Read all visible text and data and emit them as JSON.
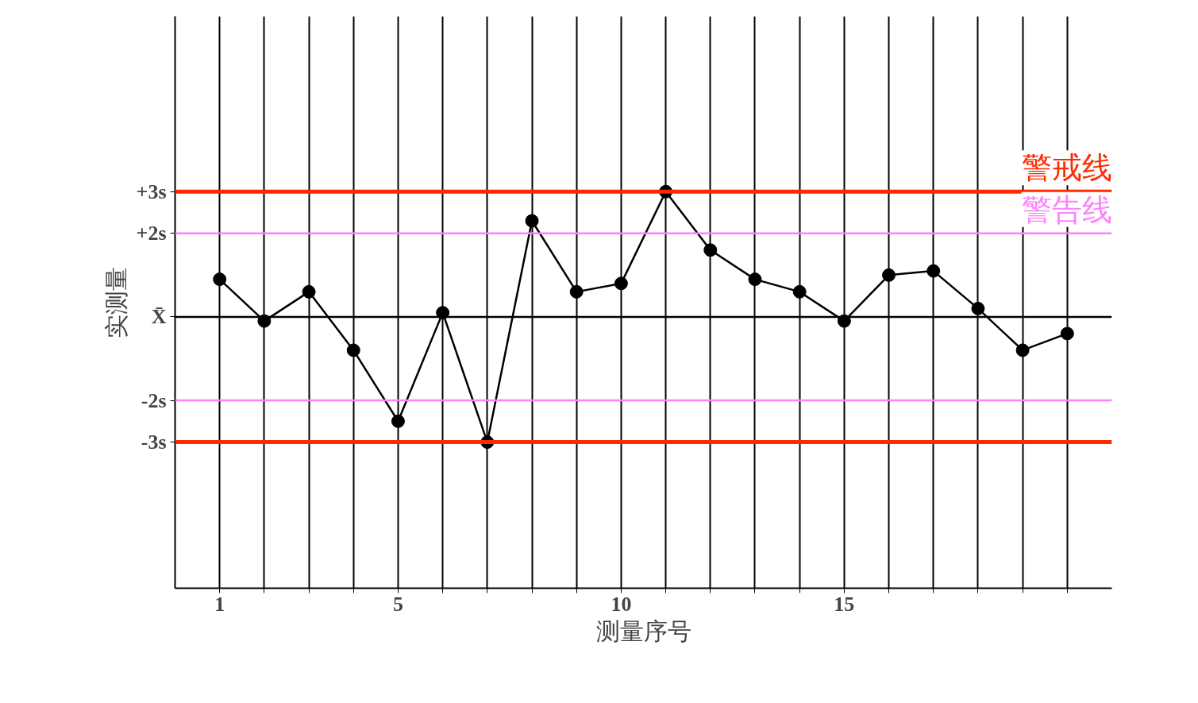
{
  "chart_data": {
    "type": "line",
    "xlabel": "测量序号",
    "ylabel": "实测量",
    "x": [
      1,
      2,
      3,
      4,
      5,
      6,
      7,
      8,
      9,
      10,
      11,
      12,
      13,
      14,
      15,
      16,
      17,
      18,
      19,
      20
    ],
    "series": [
      {
        "color": "#000000",
        "values": [
          0.9,
          -0.1,
          0.6,
          -0.8,
          -2.5,
          0.1,
          -3.0,
          2.3,
          0.6,
          0.8,
          3.0,
          1.6,
          0.9,
          0.6,
          -0.1,
          1.0,
          1.1,
          0.2,
          -0.8,
          -0.4
        ]
      }
    ],
    "marker": "circle",
    "line_style": "solid",
    "grid": "x",
    "xlim": [
      0,
      21
    ],
    "ylim": [
      -6.5,
      7.2
    ],
    "xticks": [
      1,
      {
        "value": 2,
        "label": null
      },
      {
        "value": 3,
        "label": null
      },
      {
        "value": 4,
        "label": null
      },
      5,
      {
        "value": 6,
        "label": null
      },
      {
        "value": 7,
        "label": null
      },
      {
        "value": 8,
        "label": null
      },
      {
        "value": 9,
        "label": null
      },
      10,
      {
        "value": 11,
        "label": null
      },
      {
        "value": 12,
        "label": null
      },
      {
        "value": 13,
        "label": null
      },
      {
        "value": 14,
        "label": null
      },
      15,
      {
        "value": 16,
        "label": null
      },
      {
        "value": 17,
        "label": null
      },
      {
        "value": 18,
        "label": null
      },
      {
        "value": 19,
        "label": null
      },
      {
        "value": 20,
        "label": null
      }
    ],
    "yticks": [
      {
        "value": -3,
        "label": "-3s"
      },
      {
        "value": -2,
        "label": "-2s"
      },
      {
        "value": 0,
        "label": "X̄"
      },
      {
        "value": 2,
        "label": "+2s"
      },
      {
        "value": 3,
        "label": "+3s"
      }
    ],
    "ref_lines": [
      {
        "axis": "y",
        "value": 3,
        "label": "警戒线",
        "color": "#ff2a00",
        "line_style": "solid"
      },
      {
        "axis": "y",
        "value": 2,
        "label": "警告线",
        "color": "#ff80ff",
        "line_style": "solid"
      },
      {
        "axis": "y",
        "value": 0,
        "label": null,
        "color": "#000000",
        "line_style": "solid"
      },
      {
        "axis": "y",
        "value": -2,
        "label": null,
        "color": "#ff80ff",
        "line_style": "solid"
      },
      {
        "axis": "y",
        "value": -3,
        "label": null,
        "color": "#ff2a00",
        "line_style": "solid"
      }
    ]
  }
}
